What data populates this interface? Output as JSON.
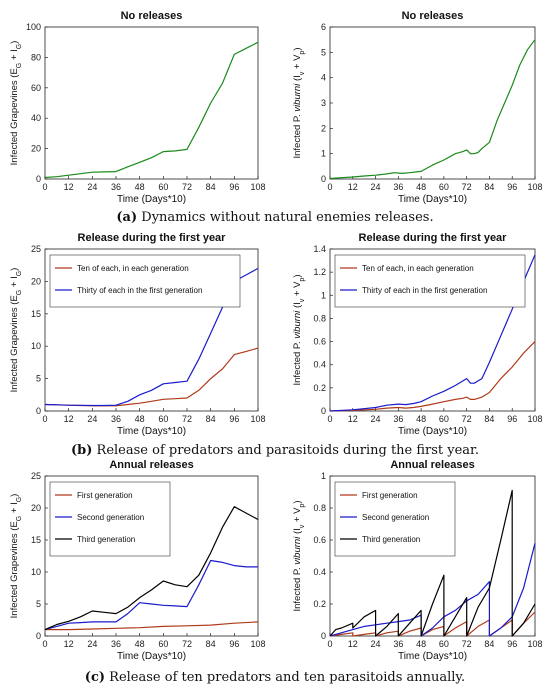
{
  "captions": {
    "a_label": "(a)",
    "a_text": "Dynamics without natural enemies releases.",
    "b_label": "(b)",
    "b_text": "Release of predators and parasitoids during the first year.",
    "c_label": "(c)",
    "c_text": "Release of ten predators and ten parasitoids annually."
  },
  "colors": {
    "green": "#1a8a1a",
    "red": "#b03a1a",
    "blue": "#1a1acc",
    "black": "#000000"
  },
  "chart_data": [
    {
      "type": "line",
      "title": "No releases",
      "xlabel": "Time (Days*10)",
      "ylabel": "Infected Grapevines (E_G + I_G)",
      "xlim": [
        0,
        108
      ],
      "ylim": [
        0,
        100
      ],
      "xticks": [
        0,
        12,
        24,
        36,
        48,
        60,
        72,
        84,
        96,
        108
      ],
      "yticks": [
        0,
        20,
        40,
        60,
        80,
        100
      ],
      "ytick_labels": [
        "0",
        "20",
        "40",
        "60",
        "80",
        "100"
      ],
      "legend": null,
      "series": [
        {
          "color": "green",
          "x": [
            0,
            6,
            12,
            18,
            24,
            30,
            36,
            42,
            48,
            54,
            60,
            66,
            72,
            78,
            84,
            90,
            96,
            102,
            108
          ],
          "y": [
            1,
            1.5,
            2.5,
            3.5,
            4.5,
            4.7,
            4.9,
            8,
            11,
            14,
            18,
            18.5,
            19.5,
            34,
            50,
            63,
            82,
            86,
            90
          ]
        }
      ]
    },
    {
      "type": "line",
      "title": "No releases",
      "xlabel": "Time (Days*10)",
      "ylabel": "Infected P. viburni (I_v + V_p)",
      "xlim": [
        0,
        108
      ],
      "ylim": [
        0,
        6
      ],
      "xticks": [
        0,
        12,
        24,
        36,
        48,
        60,
        72,
        84,
        96,
        108
      ],
      "yticks": [
        0,
        1,
        2,
        3,
        4,
        5,
        6
      ],
      "ytick_labels": [
        "0",
        "1",
        "2",
        "3",
        "4",
        "5",
        "6"
      ],
      "legend": null,
      "series": [
        {
          "color": "green",
          "x": [
            0,
            6,
            12,
            18,
            24,
            30,
            34,
            38,
            42,
            48,
            54,
            60,
            66,
            70,
            72,
            74,
            76,
            78,
            80,
            84,
            88,
            92,
            96,
            100,
            104,
            108
          ],
          "y": [
            0.02,
            0.05,
            0.08,
            0.12,
            0.15,
            0.2,
            0.25,
            0.22,
            0.25,
            0.3,
            0.55,
            0.75,
            1.0,
            1.08,
            1.15,
            1.0,
            1.0,
            1.05,
            1.2,
            1.45,
            2.3,
            3.0,
            3.7,
            4.5,
            5.1,
            5.5
          ]
        }
      ]
    },
    {
      "type": "line",
      "title": "Release during the first year",
      "xlabel": "Time (Days*10)",
      "ylabel": "Infected Grapevines (E_G + I_G)",
      "xlim": [
        0,
        108
      ],
      "ylim": [
        0,
        25
      ],
      "xticks": [
        0,
        12,
        24,
        36,
        48,
        60,
        72,
        84,
        96,
        108
      ],
      "yticks": [
        0,
        5,
        10,
        15,
        20,
        25
      ],
      "ytick_labels": [
        "0",
        "5",
        "10",
        "15",
        "20",
        "25"
      ],
      "legend": {
        "position": "top-left",
        "entries": [
          "Ten of each, in each generation",
          "Thirty of each in the first generation"
        ]
      },
      "series": [
        {
          "name": "Ten of each, in each generation",
          "color": "red",
          "x": [
            0,
            6,
            12,
            18,
            24,
            30,
            36,
            42,
            48,
            54,
            60,
            66,
            72,
            78,
            84,
            90,
            96,
            102,
            108
          ],
          "y": [
            1,
            0.95,
            0.9,
            0.85,
            0.8,
            0.8,
            0.8,
            1.0,
            1.2,
            1.5,
            1.8,
            1.9,
            2.0,
            3.2,
            5.0,
            6.5,
            8.7,
            9.2,
            9.7
          ]
        },
        {
          "name": "Thirty of each in the first generation",
          "color": "blue",
          "x": [
            0,
            6,
            12,
            18,
            24,
            30,
            36,
            42,
            48,
            54,
            60,
            66,
            72,
            78,
            84,
            90,
            96,
            102,
            108
          ],
          "y": [
            1,
            0.95,
            0.9,
            0.88,
            0.85,
            0.85,
            0.9,
            1.5,
            2.5,
            3.2,
            4.2,
            4.4,
            4.6,
            8.0,
            12.0,
            16.0,
            20.0,
            21.0,
            22.0
          ]
        }
      ]
    },
    {
      "type": "line",
      "title": "Release during the first year",
      "xlabel": "Time (Days*10)",
      "ylabel": "Infected P. viburni (I_v + V_p)",
      "xlim": [
        0,
        108
      ],
      "ylim": [
        0,
        1.4
      ],
      "xticks": [
        0,
        12,
        24,
        36,
        48,
        60,
        72,
        84,
        96,
        108
      ],
      "yticks": [
        0,
        0.2,
        0.4,
        0.6,
        0.8,
        1.0,
        1.2,
        1.4
      ],
      "ytick_labels": [
        "0",
        "0.2",
        "0.4",
        "0.6",
        "0.8",
        "1",
        "1.2",
        "1.4"
      ],
      "legend": {
        "position": "top-left",
        "entries": [
          "Ten of each, in each generation",
          "Thirty of each in the first generation"
        ]
      },
      "series": [
        {
          "name": "Ten of each, in each generation",
          "color": "red",
          "x": [
            0,
            12,
            24,
            30,
            36,
            40,
            44,
            48,
            54,
            60,
            66,
            70,
            72,
            74,
            76,
            78,
            80,
            84,
            90,
            96,
            102,
            108
          ],
          "y": [
            0,
            0.005,
            0.015,
            0.025,
            0.03,
            0.025,
            0.03,
            0.04,
            0.06,
            0.08,
            0.1,
            0.11,
            0.12,
            0.1,
            0.1,
            0.11,
            0.12,
            0.16,
            0.28,
            0.38,
            0.5,
            0.6
          ]
        },
        {
          "name": "Thirty of each in the first generation",
          "color": "blue",
          "x": [
            0,
            12,
            24,
            30,
            36,
            40,
            44,
            48,
            54,
            60,
            66,
            70,
            72,
            74,
            76,
            78,
            80,
            84,
            90,
            96,
            102,
            108
          ],
          "y": [
            0,
            0.01,
            0.03,
            0.05,
            0.06,
            0.055,
            0.065,
            0.08,
            0.13,
            0.17,
            0.22,
            0.26,
            0.28,
            0.24,
            0.24,
            0.26,
            0.28,
            0.42,
            0.65,
            0.88,
            1.12,
            1.35
          ]
        }
      ]
    },
    {
      "type": "line",
      "title": "Annual releases",
      "xlabel": "Time (Days*10)",
      "ylabel": "Infected Grapevines (E_G + I_G)",
      "xlim": [
        0,
        108
      ],
      "ylim": [
        0,
        25
      ],
      "xticks": [
        0,
        12,
        24,
        36,
        48,
        60,
        72,
        84,
        96,
        108
      ],
      "yticks": [
        0,
        5,
        10,
        15,
        20,
        25
      ],
      "ytick_labels": [
        "0",
        "5",
        "10",
        "15",
        "20",
        "25"
      ],
      "legend": {
        "position": "top-left",
        "entries": [
          "First generation",
          "Second generation",
          "Third generation"
        ]
      },
      "series": [
        {
          "name": "First generation",
          "color": "red",
          "x": [
            0,
            12,
            24,
            36,
            48,
            60,
            72,
            84,
            96,
            108
          ],
          "y": [
            1,
            1.0,
            1.1,
            1.2,
            1.3,
            1.5,
            1.6,
            1.7,
            2.0,
            2.2
          ]
        },
        {
          "name": "Second generation",
          "color": "blue",
          "x": [
            0,
            6,
            12,
            18,
            24,
            30,
            36,
            42,
            48,
            54,
            60,
            66,
            72,
            78,
            84,
            90,
            96,
            102,
            108
          ],
          "y": [
            1,
            1.5,
            2.0,
            2.1,
            2.2,
            2.2,
            2.2,
            3.5,
            5.2,
            5.0,
            4.8,
            4.7,
            4.6,
            8.0,
            11.8,
            11.5,
            11.0,
            10.8,
            10.8
          ]
        },
        {
          "name": "Third generation",
          "color": "black",
          "x": [
            0,
            6,
            12,
            18,
            24,
            30,
            36,
            42,
            48,
            54,
            60,
            66,
            72,
            78,
            84,
            90,
            96,
            102,
            108
          ],
          "y": [
            1,
            1.8,
            2.3,
            3.0,
            3.9,
            3.7,
            3.5,
            4.5,
            6.0,
            7.2,
            8.6,
            8.0,
            7.7,
            9.5,
            13.0,
            17.0,
            20.2,
            19.2,
            18.2
          ]
        }
      ]
    },
    {
      "type": "line",
      "title": "Annual releases",
      "xlabel": "Time (Days*10)",
      "ylabel": "Infected P. viburni (I_v + V_p)",
      "xlim": [
        0,
        108
      ],
      "ylim": [
        0,
        1
      ],
      "xticks": [
        0,
        12,
        24,
        36,
        48,
        60,
        72,
        84,
        96,
        108
      ],
      "yticks": [
        0,
        0.2,
        0.4,
        0.6,
        0.8,
        1.0
      ],
      "ytick_labels": [
        "0",
        "0.2",
        "0.4",
        "0.6",
        "0.8",
        "1"
      ],
      "legend": {
        "position": "top-left",
        "entries": [
          "First generation",
          "Second generation",
          "Third generation"
        ]
      },
      "series": [
        {
          "name": "First generation",
          "color": "red",
          "x": [
            0,
            6,
            12,
            12,
            18,
            24,
            24,
            30,
            36,
            36,
            42,
            48,
            48,
            54,
            60,
            60,
            66,
            72,
            72,
            78,
            84,
            84,
            90,
            96,
            96,
            102,
            108
          ],
          "y": [
            0,
            0.01,
            0.02,
            0,
            0.01,
            0.02,
            0,
            0.02,
            0.03,
            0,
            0.03,
            0.05,
            0,
            0.04,
            0.06,
            0,
            0.05,
            0.09,
            0,
            0.06,
            0.1,
            0,
            0.05,
            0.1,
            0,
            0.08,
            0.15
          ]
        },
        {
          "name": "Second generation",
          "color": "blue",
          "x": [
            0,
            6,
            12,
            18,
            24,
            30,
            36,
            42,
            48,
            48,
            54,
            60,
            66,
            72,
            72,
            78,
            84,
            84,
            90,
            96,
            102,
            108
          ],
          "y": [
            0,
            0.02,
            0.04,
            0.06,
            0.07,
            0.08,
            0.09,
            0.1,
            0.13,
            0,
            0.05,
            0.12,
            0.16,
            0.22,
            0.22,
            0.26,
            0.34,
            0,
            0.05,
            0.12,
            0.3,
            0.58
          ]
        },
        {
          "name": "Third generation",
          "color": "black",
          "x": [
            0,
            3,
            6,
            12,
            12,
            18,
            24,
            24,
            30,
            36,
            36,
            42,
            48,
            48,
            54,
            60,
            60,
            66,
            72,
            72,
            78,
            84,
            90,
            96,
            96,
            102,
            108
          ],
          "y": [
            0,
            0.04,
            0.05,
            0.08,
            0.05,
            0.12,
            0.16,
            0,
            0.06,
            0.14,
            0,
            0.08,
            0.16,
            0,
            0.2,
            0.38,
            0,
            0.12,
            0.24,
            0,
            0.18,
            0.3,
            0.6,
            0.91,
            0,
            0.08,
            0.2
          ]
        }
      ]
    }
  ]
}
